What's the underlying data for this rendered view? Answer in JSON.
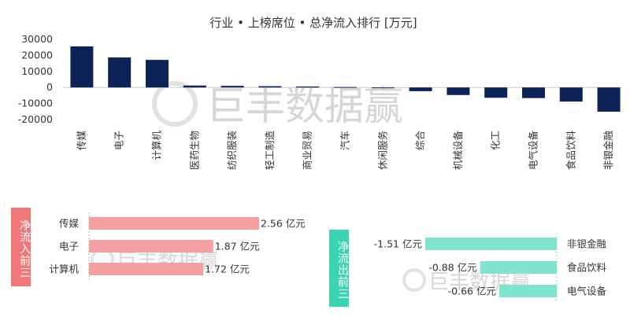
{
  "chart_data": [
    {
      "type": "bar",
      "title": "行业 • 上榜席位 • 总净流入排行 [万元]",
      "categories": [
        "传媒",
        "电子",
        "计算机",
        "医药生物",
        "纺织服装",
        "轻工制造",
        "商业贸易",
        "汽车",
        "休闲服务",
        "综合",
        "机械设备",
        "化工",
        "电气设备",
        "食品饮料",
        "非银金融"
      ],
      "values": [
        25600,
        18700,
        17200,
        1200,
        1000,
        800,
        600,
        300,
        -400,
        -2300,
        -4700,
        -6400,
        -6600,
        -8800,
        -15100
      ],
      "ylim": [
        -20000,
        30000
      ],
      "yticks": [
        "30000",
        "20000",
        "10000",
        "0",
        "-10000",
        "-20000"
      ],
      "bar_color": "#0d2357",
      "watermark": "巨丰数据赢"
    },
    {
      "type": "bar",
      "orientation": "horizontal",
      "panel_label": "净流入前三",
      "categories": [
        "传媒",
        "电子",
        "计算机"
      ],
      "values": [
        2.56,
        1.87,
        1.72
      ],
      "labels": [
        "2.56 亿元",
        "1.87 亿元",
        "1.72 亿元"
      ],
      "bar_color": "#f4a0a0",
      "tag_color": "#f07878",
      "watermark": "巨丰数据赢"
    },
    {
      "type": "bar",
      "orientation": "horizontal",
      "panel_label": "净流出前三",
      "categories": [
        "非银金融",
        "食品饮料",
        "电气设备"
      ],
      "values": [
        -1.51,
        -0.88,
        -0.66
      ],
      "labels": [
        "-1.51 亿元",
        "-0.88 亿元",
        "-0.66 亿元"
      ],
      "bar_color": "#7fe3cf",
      "tag_color": "#3cd2b4",
      "watermark": "巨丰数据赢"
    }
  ]
}
